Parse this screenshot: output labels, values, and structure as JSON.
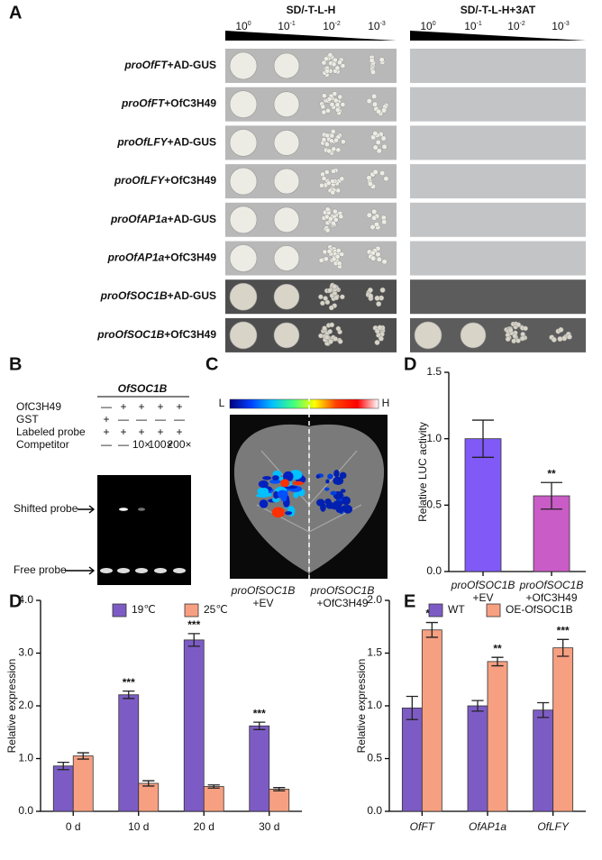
{
  "panel_a": {
    "label": "A",
    "conditions": [
      "SD/-T-L-H",
      "SD/-T-L-H+3AT"
    ],
    "dilution_base": "10",
    "dilution_exponents": [
      "0",
      "-1",
      "-2",
      "-3"
    ],
    "rows": [
      {
        "promoter": "proOfFT",
        "effector": "+AD-GUS"
      },
      {
        "promoter": "proOfFT",
        "effector": "+OfC3H49"
      },
      {
        "promoter": "proOfLFY",
        "effector": "+AD-GUS"
      },
      {
        "promoter": "proOfLFY",
        "effector": "+OfC3H49"
      },
      {
        "promoter": "proOfAP1a",
        "effector": "+AD-GUS"
      },
      {
        "promoter": "proOfAP1a",
        "effector": "+OfC3H49"
      },
      {
        "promoter": "proOfSOC1B",
        "effector": "+AD-GUS"
      },
      {
        "promoter": "proOfSOC1B",
        "effector": "+OfC3H49"
      }
    ]
  },
  "panel_b": {
    "label": "B",
    "header": "OfSOC1B",
    "rows": [
      {
        "name": "OfC3H49",
        "marks": [
          "—",
          "+",
          "+",
          "+",
          "+"
        ]
      },
      {
        "name": "GST",
        "marks": [
          "+",
          "—",
          "—",
          "—",
          "—"
        ]
      },
      {
        "name": "Labeled probe",
        "marks": [
          "+",
          "+",
          "+",
          "+",
          "+"
        ]
      },
      {
        "name": "Competitor",
        "marks": [
          "—",
          "—",
          "10×",
          "100×",
          "200×"
        ]
      }
    ],
    "shifted": "Shifted probe",
    "free": "Free probe"
  },
  "panel_c": {
    "label": "C",
    "scale_low": "L",
    "scale_high": "H",
    "samples": [
      [
        "proOfSOC1B",
        "+EV"
      ],
      [
        "proOfSOC1B",
        "+OfC3H49"
      ]
    ]
  },
  "chart_data": [
    {
      "type": "bar",
      "panel_label": "D",
      "y_label": "Relative LUC activity",
      "categories": [
        [
          "proOfSOC1B",
          "+EV"
        ],
        [
          "proOfSOC1B",
          "+OfC3H49"
        ]
      ],
      "values": [
        1.0,
        0.57
      ],
      "errors": [
        0.14,
        0.1
      ],
      "colors": [
        "#8059f7",
        "#c95cc6"
      ],
      "significance": [
        null,
        "**"
      ],
      "ylim": [
        0,
        1.5
      ],
      "yticks": [
        {
          "value": 0,
          "label": "0.0"
        },
        {
          "value": 0.5,
          "label": "0.5"
        },
        {
          "value": 1,
          "label": "1.0"
        },
        {
          "value": 1.5,
          "label": "1.5"
        }
      ]
    },
    {
      "type": "bar",
      "panel_label": "D",
      "y_label": "Relative expression",
      "categories": [
        "0 d",
        "10 d",
        "20 d",
        "30 d"
      ],
      "series": [
        {
          "name": "19℃",
          "color": "#7c5cc4",
          "values": [
            0.86,
            2.21,
            3.25,
            1.62
          ],
          "errors": [
            0.07,
            0.07,
            0.12,
            0.07
          ],
          "significance": [
            null,
            "***",
            "***",
            "***"
          ]
        },
        {
          "name": "25℃",
          "color": "#f7a081",
          "values": [
            1.05,
            0.53,
            0.47,
            0.42
          ],
          "errors": [
            0.06,
            0.05,
            0.03,
            0.03
          ]
        }
      ],
      "ylim": [
        0,
        4
      ],
      "yticks": [
        {
          "value": 0,
          "label": "0.0"
        },
        {
          "value": 1,
          "label": "1.0"
        },
        {
          "value": 2,
          "label": "2.0"
        },
        {
          "value": 3,
          "label": "3.0"
        },
        {
          "value": 4,
          "label": "4.0"
        }
      ]
    },
    {
      "type": "bar",
      "panel_label": "E",
      "y_label": "Relative expression",
      "categories": [
        "OfFT",
        "OfAP1a",
        "OfLFY"
      ],
      "series": [
        {
          "name": "WT",
          "color": "#7c5cc4",
          "values": [
            0.98,
            1.0,
            0.96
          ],
          "errors": [
            0.11,
            0.05,
            0.07
          ]
        },
        {
          "name": "OE-OfSOC1B",
          "color": "#f7a081",
          "values": [
            1.72,
            1.42,
            1.55
          ],
          "errors": [
            0.07,
            0.04,
            0.08
          ],
          "significance": [
            "***",
            "**",
            "***"
          ]
        }
      ],
      "ylim": [
        0,
        2
      ],
      "yticks": [
        {
          "value": 0,
          "label": "0.0"
        },
        {
          "value": 0.5,
          "label": "0.5"
        },
        {
          "value": 1,
          "label": "1.0"
        },
        {
          "value": 1.5,
          "label": "1.5"
        },
        {
          "value": 2,
          "label": "2.0"
        }
      ]
    }
  ]
}
